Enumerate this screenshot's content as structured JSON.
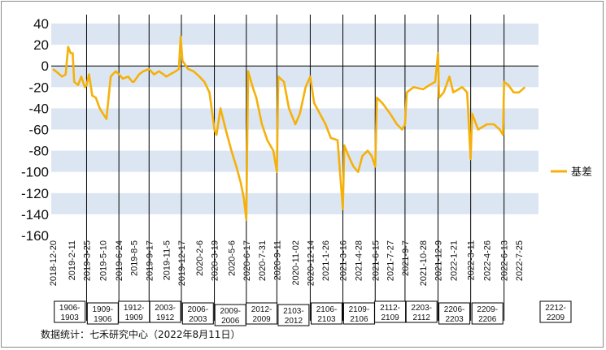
{
  "chart_data": {
    "type": "line",
    "series": [
      {
        "name": "基差",
        "color": "#F5B10A",
        "points": [
          [
            "2018-12-20",
            -3
          ],
          [
            "2019-01-01",
            -6
          ],
          [
            "2019-01-15",
            -10
          ],
          [
            "2019-01-25",
            -8
          ],
          [
            "2019-02-01",
            18
          ],
          [
            "2019-02-08",
            12
          ],
          [
            "2019-02-14",
            12
          ],
          [
            "2019-02-18",
            -15
          ],
          [
            "2019-03-01",
            -18
          ],
          [
            "2019-03-10",
            -10
          ],
          [
            "2019-03-20",
            -20
          ],
          [
            "2019-03-25",
            -18
          ],
          [
            "2019-04-01",
            -8
          ],
          [
            "2019-04-10",
            -28
          ],
          [
            "2019-04-20",
            -30
          ],
          [
            "2019-05-01",
            -40
          ],
          [
            "2019-05-10",
            -45
          ],
          [
            "2019-05-20",
            -50
          ],
          [
            "2019-06-01",
            -10
          ],
          [
            "2019-06-15",
            -5
          ],
          [
            "2019-06-24",
            -8
          ],
          [
            "2019-07-05",
            -12
          ],
          [
            "2019-07-20",
            -10
          ],
          [
            "2019-08-01",
            -15
          ],
          [
            "2019-08-05",
            -15
          ],
          [
            "2019-08-20",
            -8
          ],
          [
            "2019-09-01",
            -5
          ],
          [
            "2019-09-17",
            -3
          ],
          [
            "2019-10-01",
            -8
          ],
          [
            "2019-10-15",
            -5
          ],
          [
            "2019-11-05",
            -10
          ],
          [
            "2019-11-15",
            -8
          ],
          [
            "2019-12-01",
            -5
          ],
          [
            "2019-12-10",
            -3
          ],
          [
            "2019-12-15",
            28
          ],
          [
            "2019-12-20",
            5
          ],
          [
            "2020-01-05",
            -3
          ],
          [
            "2020-01-20",
            -5
          ],
          [
            "2020-02-06",
            -10
          ],
          [
            "2020-02-20",
            -15
          ],
          [
            "2020-03-05",
            -25
          ],
          [
            "2020-03-19",
            -60
          ],
          [
            "2020-03-25",
            -65
          ],
          [
            "2020-04-05",
            -40
          ],
          [
            "2020-04-20",
            -60
          ],
          [
            "2020-05-06",
            -80
          ],
          [
            "2020-05-20",
            -95
          ],
          [
            "2020-06-01",
            -110
          ],
          [
            "2020-06-10",
            -125
          ],
          [
            "2020-06-17",
            -145
          ],
          [
            "2020-06-22",
            -5
          ],
          [
            "2020-07-05",
            -20
          ],
          [
            "2020-07-15",
            -30
          ],
          [
            "2020-07-31",
            -55
          ],
          [
            "2020-08-15",
            -70
          ],
          [
            "2020-09-01",
            -80
          ],
          [
            "2020-09-11",
            -100
          ],
          [
            "2020-09-15",
            -10
          ],
          [
            "2020-10-01",
            -15
          ],
          [
            "2020-10-15",
            -40
          ],
          [
            "2020-11-02",
            -55
          ],
          [
            "2020-11-15",
            -45
          ],
          [
            "2020-12-01",
            -20
          ],
          [
            "2020-12-14",
            -10
          ],
          [
            "2020-12-25",
            -35
          ],
          [
            "2021-01-10",
            -45
          ],
          [
            "2021-01-26",
            -55
          ],
          [
            "2021-02-10",
            -68
          ],
          [
            "2021-03-01",
            -70
          ],
          [
            "2021-03-16",
            -135
          ],
          [
            "2021-03-20",
            -75
          ],
          [
            "2021-04-01",
            -85
          ],
          [
            "2021-04-15",
            -95
          ],
          [
            "2021-04-28",
            -100
          ],
          [
            "2021-05-10",
            -85
          ],
          [
            "2021-05-25",
            -80
          ],
          [
            "2021-06-05",
            -85
          ],
          [
            "2021-06-15",
            -95
          ],
          [
            "2021-06-20",
            -30
          ],
          [
            "2021-07-05",
            -35
          ],
          [
            "2021-07-27",
            -45
          ],
          [
            "2021-08-15",
            -55
          ],
          [
            "2021-08-30",
            -60
          ],
          [
            "2021-09-07",
            -55
          ],
          [
            "2021-09-12",
            -25
          ],
          [
            "2021-10-01",
            -20
          ],
          [
            "2021-10-28",
            -22
          ],
          [
            "2021-11-15",
            -18
          ],
          [
            "2021-12-01",
            -15
          ],
          [
            "2021-12-09",
            12
          ],
          [
            "2021-12-12",
            -30
          ],
          [
            "2021-12-25",
            -25
          ],
          [
            "2022-01-10",
            -10
          ],
          [
            "2022-01-21",
            -25
          ],
          [
            "2022-02-15",
            -20
          ],
          [
            "2022-03-01",
            -25
          ],
          [
            "2022-03-11",
            -88
          ],
          [
            "2022-03-15",
            -45
          ],
          [
            "2022-04-01",
            -60
          ],
          [
            "2022-04-26",
            -55
          ],
          [
            "2022-05-15",
            -55
          ],
          [
            "2022-06-01",
            -60
          ],
          [
            "2022-06-10",
            -65
          ],
          [
            "2022-06-13",
            -15
          ],
          [
            "2022-06-25",
            -18
          ],
          [
            "2022-07-10",
            -25
          ],
          [
            "2022-07-25",
            -25
          ],
          [
            "2022-08-11",
            -20
          ]
        ]
      }
    ],
    "y_ticks": [
      40,
      20,
      0,
      -20,
      -40,
      -60,
      -80,
      -100,
      -120,
      -140,
      -160
    ],
    "ylim": [
      -160,
      40
    ],
    "x_ticks": [
      "2018-12-20",
      "2019-2-11",
      "2019-3-25",
      "2019-5-10",
      "2019-6-24",
      "2019-8-5",
      "2019-9-17",
      "2019-11-5",
      "2019-12-17",
      "2020-2-6",
      "2020-3-19",
      "2020-5-6",
      "2020-6-17",
      "2020-7-31",
      "2020-9-11",
      "2020-11-02",
      "2020-12-14",
      "2021-1-26",
      "2021-3-16",
      "2021-4-28",
      "2021-6-15",
      "2021-7-27",
      "2021-9-7",
      "2021-10-28",
      "2021-12-9",
      "2022-1-21",
      "2022-3-11",
      "2022-4-26",
      "2022-6-13",
      "2022-7-25"
    ],
    "contract_dividers": [
      "2019-03-25",
      "2019-06-24",
      "2019-09-17",
      "2019-12-17",
      "2020-03-19",
      "2020-06-17",
      "2020-09-11",
      "2020-12-14",
      "2021-03-16",
      "2021-06-15",
      "2021-09-07",
      "2021-12-09",
      "2022-03-11",
      "2022-06-13"
    ],
    "contracts": [
      "1906-1903",
      "1909-1906",
      "1912-1909",
      "2003-1912",
      "2006-2003",
      "2009-2006",
      "2012-2009",
      "2103-2012",
      "2106-2103",
      "2109-2106",
      "2112-2109",
      "2203-2112",
      "2206-2203",
      "2209-2206",
      "2212-2209"
    ],
    "grid": "alternating horizontal bands",
    "band_color": "#DCE6F2",
    "legend": "right"
  },
  "source": "数据统计：七禾研究中心（2022年8月11日）"
}
